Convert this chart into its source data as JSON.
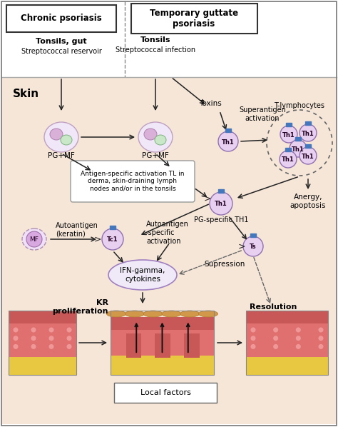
{
  "bg_white": "#ffffff",
  "bg_skin": "#f5e6d8",
  "chronic_text": "Chronic psoriasis",
  "temporary_text": "Temporary guttate\npsoriasis",
  "tonsils_gut_text": "Tonsils, gut",
  "strep_reservoir_text": "Streptococcal reservoir",
  "tonsils_text": "Tonsils",
  "strep_infection_text": "Streptococcal infection",
  "toxins_text": "Toxins",
  "superantigen_text": "Superantigen\nactivation",
  "tlympho_text": "T-lymphocytes",
  "skin_text": "Skin",
  "pgmf_text": "PG+MF",
  "antigen_text": "Antigen-specific activation TL in\nderma, skin-draining lymph\nnodes and/or in the tonsils",
  "pgspecific_text": "PG-specific TH1",
  "anergy_text": "Anergy,\napoptosis",
  "autoantigen_text": "Autoantigen\n(keratin)",
  "mf_text": "MF",
  "autoantigen_specific_text": "Autoantigen\n-specific\nactivation",
  "ifn_text": "IFN-gamma,\ncytokines",
  "supression_text": "Supression",
  "kr_text": "KR\nproliferation",
  "resolution_text": "Resolution",
  "local_factors_text": "Local factors",
  "marker_color": "#4477bb",
  "cell_fill": "#e8d0f0",
  "cell_ec": "#9070b0",
  "pgmf_outer_fill": "#f0e8f8",
  "pgmf_outer_ec": "#c0a0c0",
  "pgmf_b1_fill": "#d8b0d8",
  "pgmf_b2_fill": "#c8e8c8",
  "ifn_fill": "#f0eaf8",
  "ifn_ec": "#a080c0"
}
